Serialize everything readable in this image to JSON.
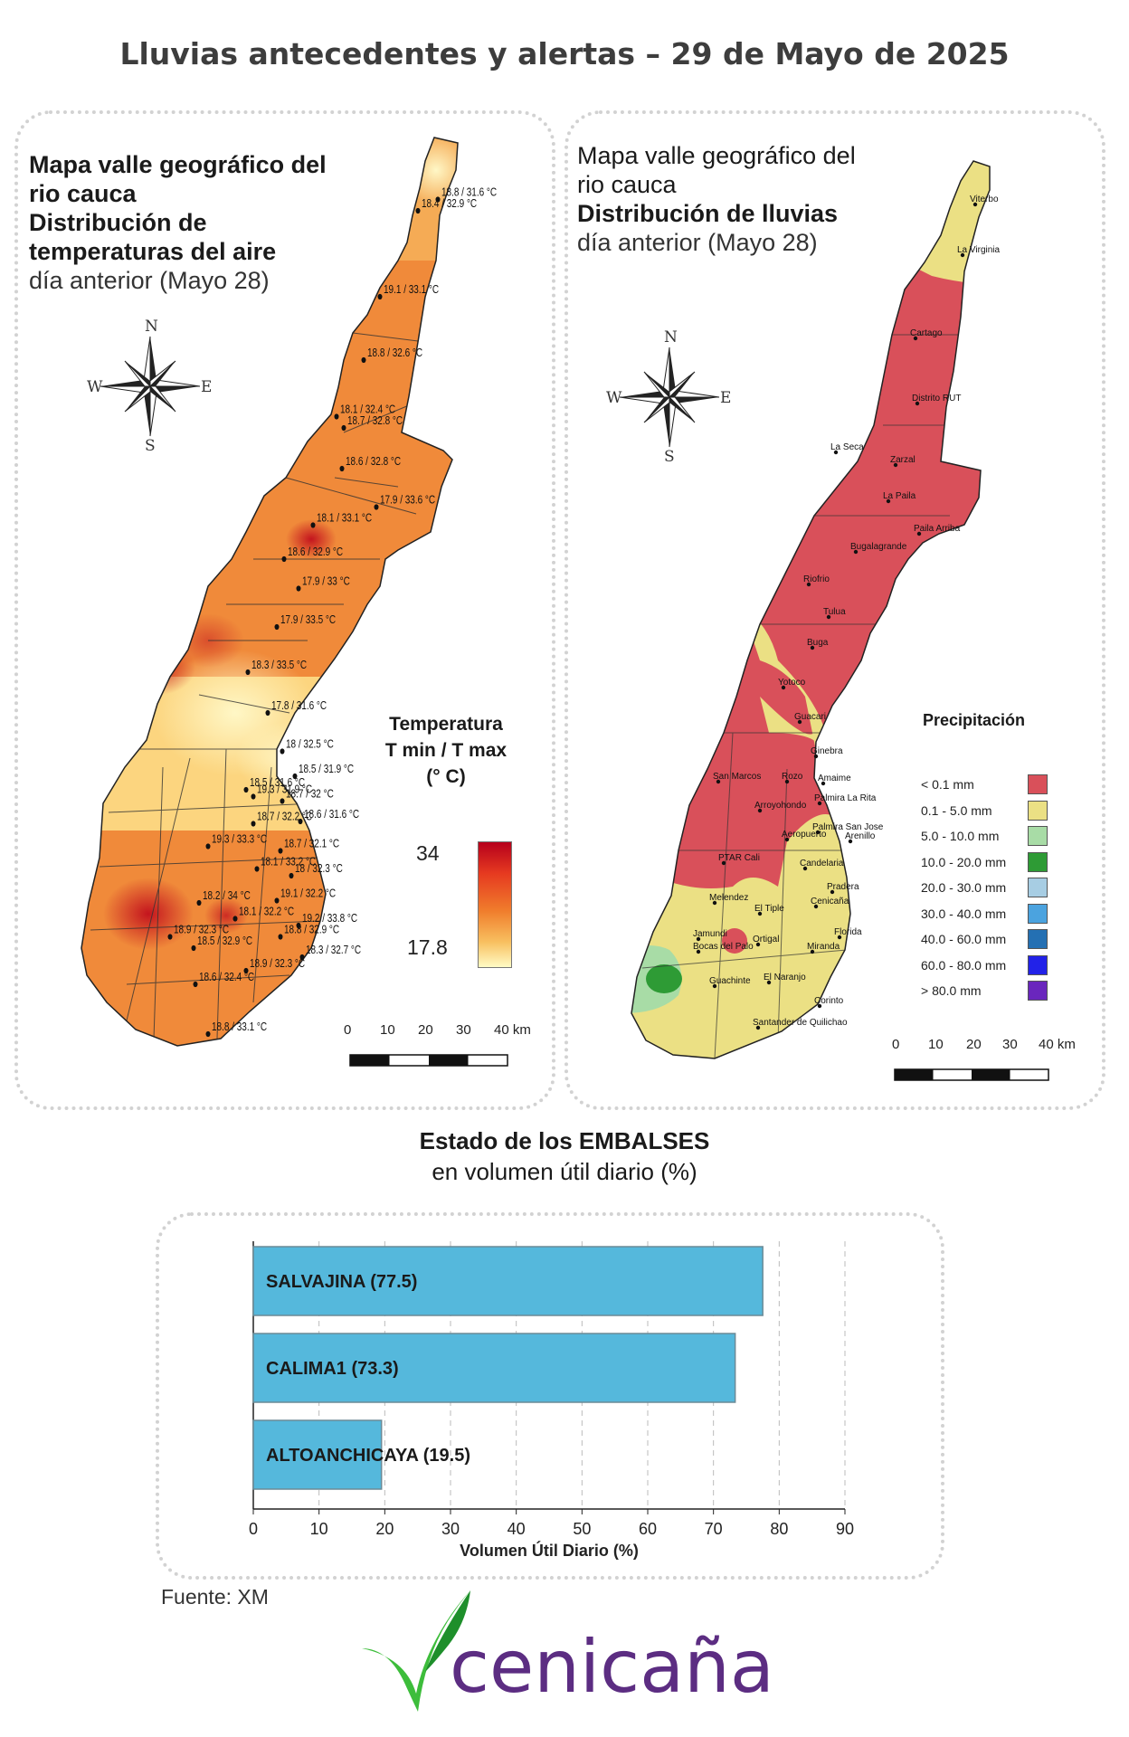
{
  "page": {
    "title": "Lluvias antecedentes y alertas – 29 de Mayo de 2025",
    "source": "Fuente: XM"
  },
  "temp_map": {
    "title_bold_1": "Mapa valle geográfico del",
    "title_bold_2": "rio cauca",
    "title_bold_3": "Distribución de",
    "title_bold_4": "temperaturas del aire",
    "subtitle": "día anterior (Mayo 28)",
    "legend_title_1": "Temperatura",
    "legend_title_2": "T min / T max",
    "legend_title_3": "(° C)",
    "legend_max": "34",
    "legend_min": "17.8",
    "scale_labels": [
      "0",
      "10",
      "20",
      "30",
      "40 km"
    ],
    "stations": [
      "18.8 / 31.6 °C",
      "18.4 / 32.9 °C",
      "19.1 / 33.1 °C",
      "18.8 / 32.6 °C",
      "18.1 / 32.4 °C",
      "18.7 / 32.8 °C",
      "18.6 / 32.8 °C",
      "17.9 / 33.6 °C",
      "18.1 / 33.1 °C",
      "18.6 / 32.9 °C",
      "17.9 / 33 °C",
      "17.9 / 33.5 °C",
      "18.3 / 33.5 °C",
      "17.8 / 31.6 °C",
      "18 / 32.5 °C",
      "18.5 / 31.6 °C",
      "18.5 / 31.9 °C",
      "19.3 / 31.9 °C",
      "18.7 / 32 °C",
      "18.7 / 32.2 °C",
      "18.6 / 31.6 °C",
      "19.3 / 33.3 °C",
      "18.7 / 32.1 °C",
      "18.1 / 33.2 °C",
      "18 / 32.3 °C",
      "18.2 / 34 °C",
      "19.1 / 32.2 °C",
      "18.1 / 32.2 °C",
      "19.2 / 33.8 °C",
      "18.9 / 32.3 °C",
      "18.8 / 32.9 °C",
      "18.5 / 32.9 °C",
      "18.3 / 32.7 °C",
      "18.9 / 32.3 °C",
      "18.6 / 32.4 °C",
      "18.8 / 33.1 °C"
    ]
  },
  "rain_map": {
    "title_1": "Mapa valle geográfico del",
    "title_2": "rio cauca",
    "title_3": "Distribución de lluvias",
    "subtitle": "día anterior (Mayo 28)",
    "legend_title": "Precipitación",
    "scale_labels": [
      "0",
      "10",
      "20",
      "30",
      "40 km"
    ],
    "legend": [
      {
        "label": "< 0.1 mm",
        "color": "#d9505a"
      },
      {
        "label": "0.1 - 5.0 mm",
        "color": "#ebe084"
      },
      {
        "label": "5.0 - 10.0 mm",
        "color": "#a8dca6"
      },
      {
        "label": "10.0 - 20.0 mm",
        "color": "#2e9b35"
      },
      {
        "label": "20.0 - 30.0 mm",
        "color": "#a7cde3"
      },
      {
        "label": "30.0 - 40.0 mm",
        "color": "#4ba3df"
      },
      {
        "label": "40.0 - 60.0 mm",
        "color": "#2470b3"
      },
      {
        "label": "60.0 - 80.0 mm",
        "color": "#2222e8"
      },
      {
        "label": "> 80.0 mm",
        "color": "#6a26bd"
      }
    ],
    "places": [
      "Viterbo",
      "La Virginia",
      "Cartago",
      "Distrito RUT",
      "La Seca",
      "Zarzal",
      "La Paila",
      "Paila Arriba",
      "Bugalagrande",
      "Riofrio",
      "Tulua",
      "Buga",
      "Yotoco",
      "Guacari",
      "Ginebra",
      "Amaime",
      "San Marcos",
      "Rozo",
      "Palmira La Rita",
      "Arroyohondo",
      "Palmira San Jose",
      "Aeropuerto",
      "Arenillo",
      "PTAR Cali",
      "Candelaria",
      "Pradera",
      "Melendez",
      "Cenicaña",
      "El Tiple",
      "Florida",
      "Jamundi",
      "Bocas del Palo",
      "Ortigal",
      "Miranda",
      "Guachinte",
      "El Naranjo",
      "Corinto",
      "Santander de Quilichao"
    ]
  },
  "reservoirs": {
    "title": "Estado de los EMBALSES",
    "subtitle": "en volumen útil diario (%)",
    "chart_data": {
      "type": "bar",
      "orientation": "horizontal",
      "categories": [
        "SALVAJINA",
        "CALIMA1",
        "ALTOANCHICAYA"
      ],
      "bar_labels": [
        "SALVAJINA (77.5)",
        "CALIMA1 (73.3)",
        "ALTOANCHICAYA (19.5)"
      ],
      "values": [
        77.5,
        73.3,
        19.5
      ],
      "xlabel": "Volumen Útil Diario (%)",
      "xlim": [
        0,
        90
      ],
      "xticks": [
        "0",
        "10",
        "20",
        "30",
        "40",
        "50",
        "60",
        "70",
        "80",
        "90"
      ],
      "grid": "vertical dashed",
      "bar_color": "#55b8dc"
    }
  },
  "logo": {
    "text": "cenicaña",
    "mark": "leaf-check-icon",
    "text_color": "#5c2d82",
    "mark_color": "#3dbd3b"
  }
}
